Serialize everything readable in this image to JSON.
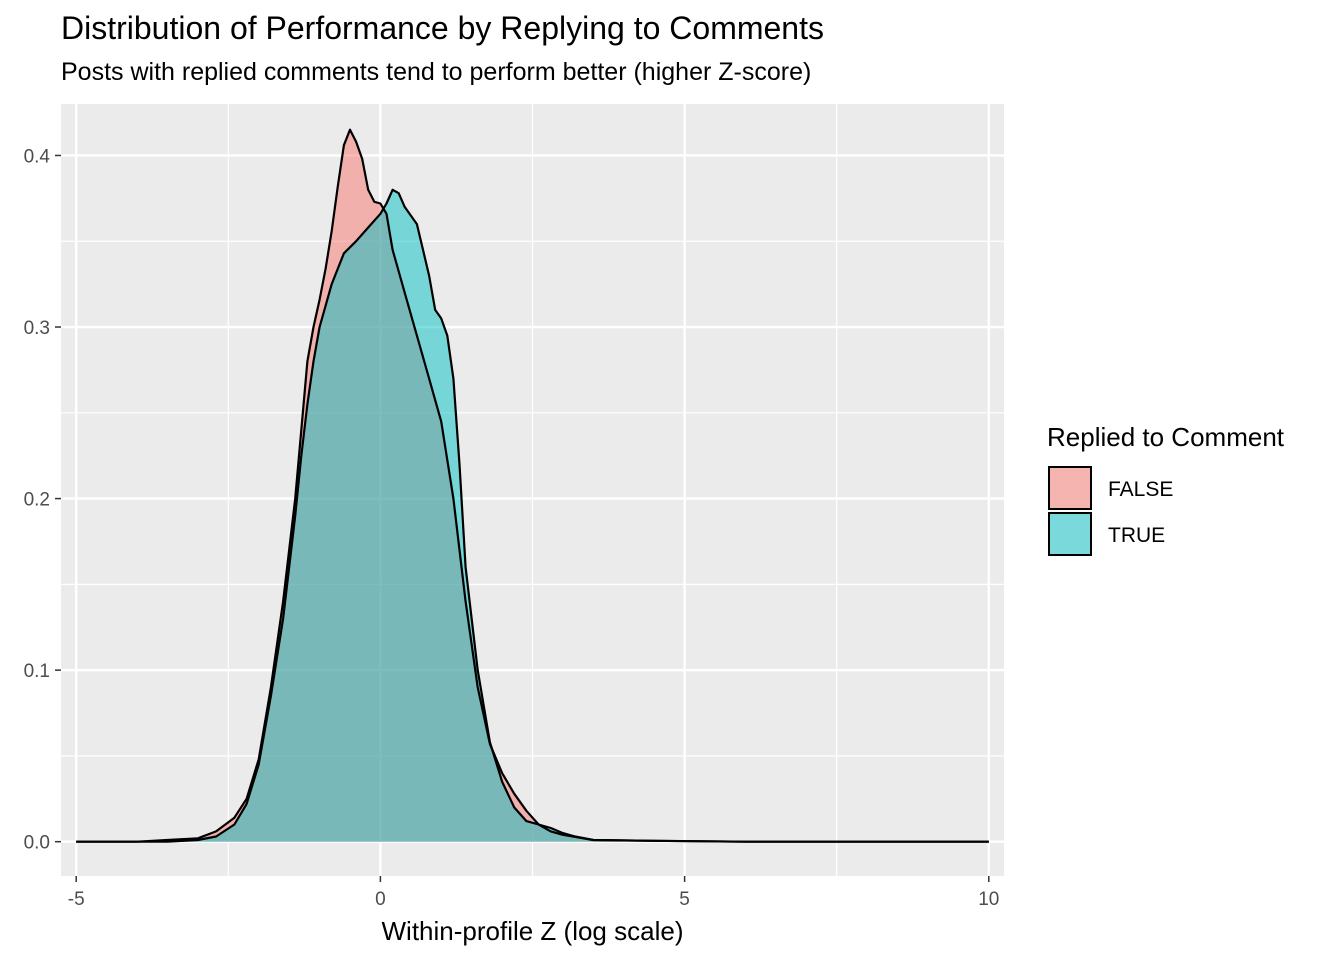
{
  "chart_data": {
    "type": "area",
    "title": "Distribution of Performance by Replying to Comments",
    "subtitle": "Posts with replied comments tend to perform better (higher Z-score)",
    "xlabel": "Within-profile Z (log scale)",
    "ylabel": "",
    "xlim": [
      -5.25,
      10.25
    ],
    "ylim": [
      -0.02,
      0.43
    ],
    "x_ticks": [
      -5,
      0,
      5,
      10
    ],
    "x_tick_labels": [
      "-5",
      "0",
      "5",
      "10"
    ],
    "y_ticks": [
      0.0,
      0.1,
      0.2,
      0.3,
      0.4
    ],
    "y_tick_labels": [
      "0.0",
      "0.1",
      "0.2",
      "0.3",
      "0.4"
    ],
    "grid": true,
    "legend": {
      "title": "Replied to Comment",
      "position": "right",
      "entries": [
        "FALSE",
        "TRUE"
      ]
    },
    "series": [
      {
        "name": "FALSE",
        "color": "#F8766D",
        "points": [
          [
            -5,
            0
          ],
          [
            -4,
            0
          ],
          [
            -3.5,
            0.001
          ],
          [
            -3,
            0.002
          ],
          [
            -2.7,
            0.006
          ],
          [
            -2.4,
            0.014
          ],
          [
            -2.2,
            0.025
          ],
          [
            -2.0,
            0.048
          ],
          [
            -1.8,
            0.09
          ],
          [
            -1.6,
            0.14
          ],
          [
            -1.4,
            0.2
          ],
          [
            -1.3,
            0.24
          ],
          [
            -1.2,
            0.28
          ],
          [
            -1.1,
            0.3
          ],
          [
            -1.0,
            0.316
          ],
          [
            -0.9,
            0.334
          ],
          [
            -0.8,
            0.356
          ],
          [
            -0.7,
            0.382
          ],
          [
            -0.6,
            0.406
          ],
          [
            -0.5,
            0.415
          ],
          [
            -0.4,
            0.408
          ],
          [
            -0.3,
            0.398
          ],
          [
            -0.2,
            0.38
          ],
          [
            -0.1,
            0.373
          ],
          [
            0.0,
            0.372
          ],
          [
            0.1,
            0.366
          ],
          [
            0.2,
            0.345
          ],
          [
            0.4,
            0.32
          ],
          [
            0.6,
            0.295
          ],
          [
            0.8,
            0.27
          ],
          [
            1.0,
            0.245
          ],
          [
            1.2,
            0.2
          ],
          [
            1.4,
            0.14
          ],
          [
            1.6,
            0.09
          ],
          [
            1.8,
            0.057
          ],
          [
            2.0,
            0.04
          ],
          [
            2.2,
            0.028
          ],
          [
            2.4,
            0.018
          ],
          [
            2.6,
            0.01
          ],
          [
            2.8,
            0.006
          ],
          [
            3.0,
            0.004
          ],
          [
            3.5,
            0.001
          ],
          [
            4.5,
            0.0005
          ],
          [
            6,
            0
          ],
          [
            10,
            0
          ]
        ]
      },
      {
        "name": "TRUE",
        "color": "#00BFC4",
        "points": [
          [
            -5,
            0
          ],
          [
            -4,
            0
          ],
          [
            -3.5,
            0
          ],
          [
            -3,
            0.001
          ],
          [
            -2.7,
            0.003
          ],
          [
            -2.4,
            0.01
          ],
          [
            -2.2,
            0.022
          ],
          [
            -2.0,
            0.045
          ],
          [
            -1.8,
            0.085
          ],
          [
            -1.6,
            0.13
          ],
          [
            -1.4,
            0.19
          ],
          [
            -1.3,
            0.225
          ],
          [
            -1.2,
            0.255
          ],
          [
            -1.1,
            0.28
          ],
          [
            -1.0,
            0.3
          ],
          [
            -0.8,
            0.325
          ],
          [
            -0.6,
            0.343
          ],
          [
            -0.4,
            0.35
          ],
          [
            -0.2,
            0.358
          ],
          [
            0.0,
            0.366
          ],
          [
            0.1,
            0.372
          ],
          [
            0.2,
            0.38
          ],
          [
            0.3,
            0.378
          ],
          [
            0.4,
            0.37
          ],
          [
            0.6,
            0.36
          ],
          [
            0.7,
            0.345
          ],
          [
            0.8,
            0.33
          ],
          [
            0.9,
            0.31
          ],
          [
            1.0,
            0.305
          ],
          [
            1.1,
            0.295
          ],
          [
            1.2,
            0.27
          ],
          [
            1.3,
            0.22
          ],
          [
            1.4,
            0.16
          ],
          [
            1.6,
            0.1
          ],
          [
            1.8,
            0.058
          ],
          [
            2.0,
            0.035
          ],
          [
            2.2,
            0.02
          ],
          [
            2.4,
            0.012
          ],
          [
            2.6,
            0.01
          ],
          [
            2.8,
            0.008
          ],
          [
            3.0,
            0.005
          ],
          [
            3.2,
            0.003
          ],
          [
            3.5,
            0.001
          ],
          [
            4.5,
            0.0005
          ],
          [
            6,
            0
          ],
          [
            10,
            0
          ]
        ]
      }
    ]
  }
}
